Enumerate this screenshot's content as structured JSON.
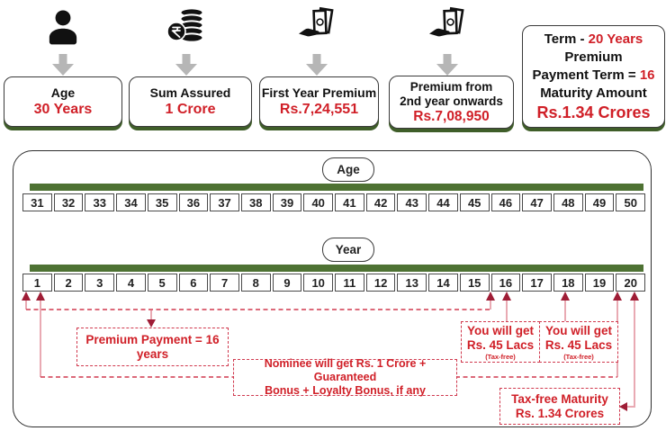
{
  "colors": {
    "accent_red": "#d01f27",
    "arrow_dark_red": "#9f1d36",
    "stem_pink": "#e9aab3",
    "dashed_red": "#d0394e",
    "bar_green": "#4e7233",
    "card_shadow_green": "#3f5e29",
    "gray_arrow": "#b6b6b6"
  },
  "cards": {
    "age": {
      "title": "Age",
      "value": "30 Years"
    },
    "sum_assured": {
      "title": "Sum Assured",
      "value": "1 Crore"
    },
    "first_year_premium": {
      "title": "First Year Premium",
      "value": "Rs.7,24,551"
    },
    "premium_onwards": {
      "title_line1": "Premium from",
      "title_line2": "2nd year onwards",
      "value": "Rs.7,08,950"
    },
    "term": {
      "term_label": "Term  -",
      "term_value": "20 Years",
      "line2": "Premium",
      "payment_label": "Payment Term =",
      "payment_value": "16",
      "maturity_label": "Maturity Amount",
      "maturity_value": "Rs.1.34 Crores"
    }
  },
  "timeline": {
    "age_label": "Age",
    "year_label": "Year",
    "ages": [
      "31",
      "32",
      "33",
      "34",
      "35",
      "36",
      "37",
      "38",
      "39",
      "40",
      "41",
      "42",
      "43",
      "44",
      "45",
      "46",
      "47",
      "48",
      "49",
      "50"
    ],
    "years": [
      "1",
      "2",
      "3",
      "4",
      "5",
      "6",
      "7",
      "8",
      "9",
      "10",
      "11",
      "12",
      "13",
      "14",
      "15",
      "16",
      "17",
      "18",
      "19",
      "20"
    ]
  },
  "annotations": {
    "premium_payment": "Premium Payment = 16 years",
    "nominee_line1": "Nominee will get Rs. 1 Crore + Guaranteed",
    "nominee_line2": "Bonus + Loyalty Bonus, if any",
    "you_get_16": {
      "line1": "You will get",
      "line2": "Rs. 45 Lacs",
      "line3": "(Tax-free)"
    },
    "you_get_18": {
      "line1": "You will get",
      "line2": "Rs. 45 Lacs",
      "line3": "(Tax-free)"
    },
    "maturity_line1": "Tax-free Maturity",
    "maturity_line2": "Rs. 1.34 Crores"
  }
}
